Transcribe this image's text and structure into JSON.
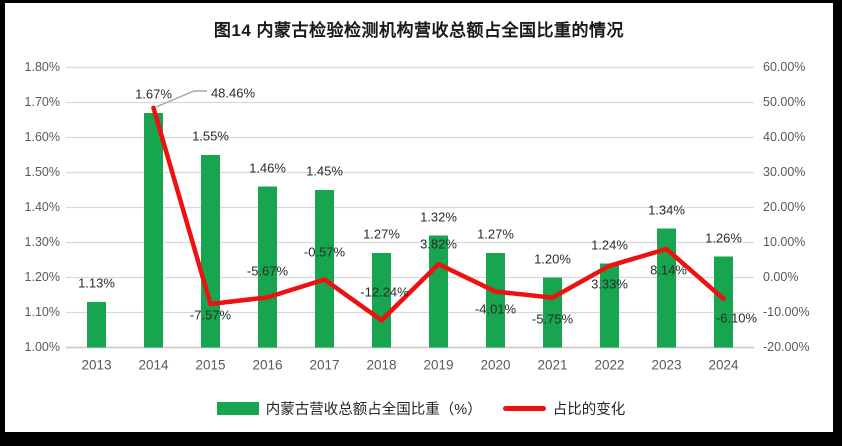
{
  "title": "图14 内蒙古检验检测机构营收总额占全国比重的情况",
  "legend": {
    "bar_label": "内蒙古营收总额占全国比重（%）",
    "line_label": "占比的变化"
  },
  "colors": {
    "bar": "#17a550",
    "line": "#ee1111",
    "gridline": "#d9d9d9",
    "axis_line": "#c6c6c6",
    "axis_text": "#595959",
    "data_label_text": "#2b2b2b",
    "callout_leader": "#a6a6a6",
    "frame": "#000000",
    "background": "#ffffff"
  },
  "chart_data": {
    "type": "bar",
    "subtype": "combo-bar-line",
    "title": "图14 内蒙古检验检测机构营收总额占全国比重的情况",
    "categories": [
      "2013",
      "2014",
      "2015",
      "2016",
      "2017",
      "2018",
      "2019",
      "2020",
      "2021",
      "2022",
      "2023",
      "2024"
    ],
    "series": [
      {
        "name": "内蒙古营收总额占全国比重（%）",
        "type": "bar",
        "axis": "left",
        "values": [
          1.13,
          1.67,
          1.55,
          1.46,
          1.45,
          1.27,
          1.32,
          1.27,
          1.2,
          1.24,
          1.34,
          1.26
        ],
        "labels": [
          "1.13%",
          "1.67%",
          "1.55%",
          "1.46%",
          "1.45%",
          "1.27%",
          "1.32%",
          "1.27%",
          "1.20%",
          "1.24%",
          "1.34%",
          "1.26%"
        ]
      },
      {
        "name": "占比的变化",
        "type": "line",
        "axis": "right",
        "values": [
          null,
          48.46,
          -7.57,
          -5.67,
          -0.57,
          -12.24,
          3.82,
          -4.01,
          -5.75,
          3.33,
          8.14,
          -6.1
        ],
        "labels": [
          null,
          "48.46%",
          "-7.57%",
          "-5.67%",
          "-0.57%",
          "-12.24%",
          "3.82%",
          "-4.01%",
          "-5.75%",
          "3.33%",
          "8.14%",
          "-6.10%"
        ],
        "label_placement": [
          null,
          "callout",
          "below",
          "above",
          "above",
          "above",
          "above",
          "below",
          "below",
          "below",
          "below",
          "below"
        ]
      }
    ],
    "left_axis": {
      "min": 1.0,
      "max": 1.8,
      "step": 0.1,
      "ticks": [
        "1.80%",
        "1.70%",
        "1.60%",
        "1.50%",
        "1.40%",
        "1.30%",
        "1.20%",
        "1.10%",
        "1.00%"
      ]
    },
    "right_axis": {
      "min": -20,
      "max": 60,
      "step": 10,
      "ticks": [
        "60.00%",
        "50.00%",
        "40.00%",
        "30.00%",
        "20.00%",
        "10.00%",
        "0.00%",
        "-10.00%",
        "-20.00%"
      ]
    },
    "grid": "horizontal-only",
    "legend_position": "bottom"
  }
}
